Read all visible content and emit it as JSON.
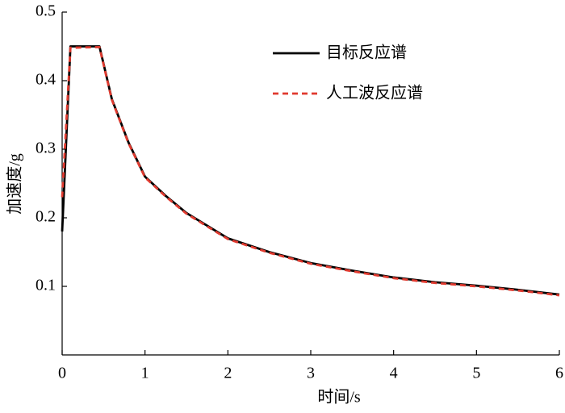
{
  "chart_data": {
    "type": "line",
    "x_label": "时间/s",
    "y_label": "加速度/g",
    "x": [
      0,
      0.1,
      0.45,
      0.6,
      0.8,
      1,
      1.25,
      1.5,
      2,
      2.5,
      3,
      3.5,
      4,
      4.5,
      5,
      5.5,
      6
    ],
    "series": [
      {
        "name": "目标反应谱",
        "color": "#000000",
        "dash": false,
        "values": [
          0.18,
          0.45,
          0.45,
          0.373,
          0.31,
          0.26,
          0.232,
          0.207,
          0.17,
          0.15,
          0.134,
          0.123,
          0.113,
          0.106,
          0.101,
          0.095,
          0.088
        ]
      },
      {
        "name": "人工波反应谱",
        "color": "#e03a2f",
        "dash": true,
        "values": [
          0.23,
          0.448,
          0.449,
          0.372,
          0.309,
          0.259,
          0.231,
          0.206,
          0.169,
          0.149,
          0.133,
          0.122,
          0.112,
          0.105,
          0.1,
          0.094,
          0.087
        ]
      }
    ],
    "xlim": [
      0,
      6
    ],
    "xticks": [
      0,
      1,
      2,
      3,
      4,
      5,
      6
    ],
    "ylim": [
      0,
      0.5
    ],
    "yticks": [
      0.1,
      0.2,
      0.3,
      0.4,
      0.5
    ],
    "legend": "upper-right"
  }
}
